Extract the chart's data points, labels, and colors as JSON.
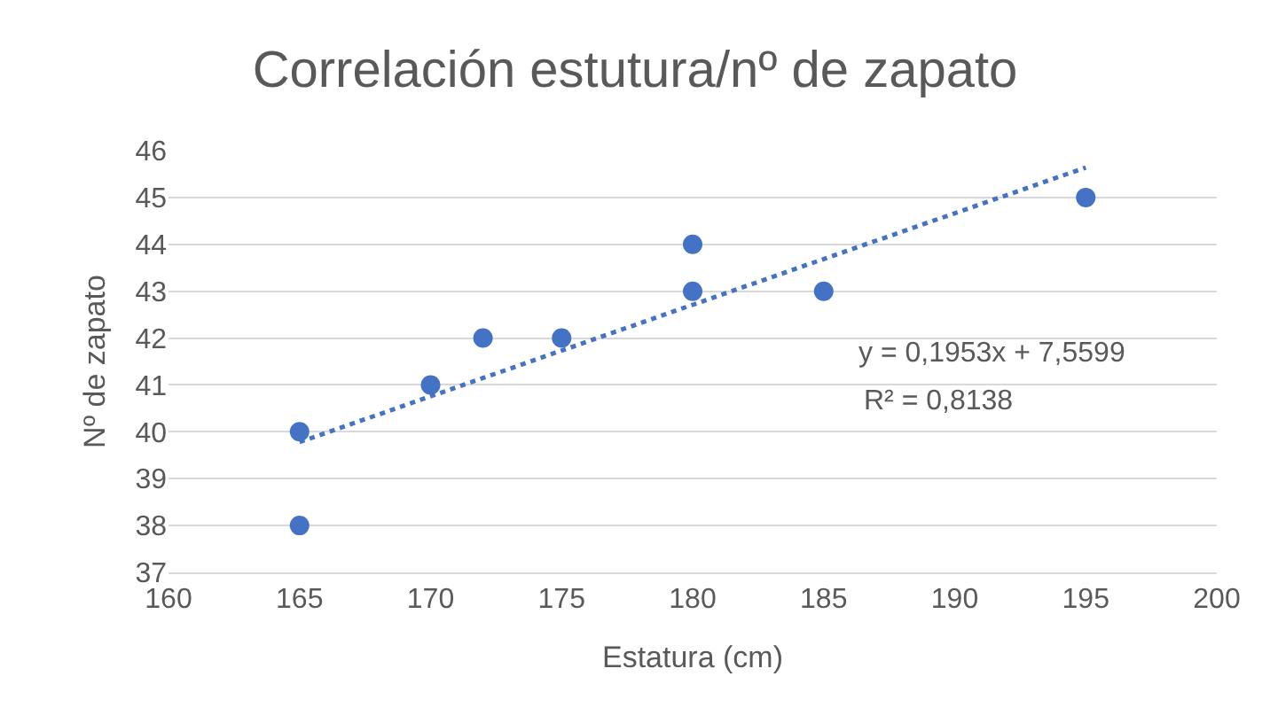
{
  "chart_data": {
    "type": "scatter",
    "title": "Correlación estutura/nº de zapato",
    "xlabel": "Estatura (cm)",
    "ylabel": "Nº de zapato",
    "xlim": [
      160,
      200
    ],
    "xticks": [
      160,
      165,
      170,
      175,
      180,
      185,
      190,
      195,
      200
    ],
    "ylim": [
      37,
      46
    ],
    "yticks": [
      37,
      38,
      39,
      40,
      41,
      42,
      43,
      44,
      45,
      46
    ],
    "grid": "y",
    "series": [
      {
        "marker": "circle",
        "color": "#4472c4",
        "x": [
          165,
          165,
          170,
          172,
          175,
          180,
          180,
          185,
          195
        ],
        "values": [
          40,
          38,
          41,
          42,
          42,
          44,
          43,
          43,
          45
        ]
      },
      {
        "type": "line",
        "color": "#4472c4",
        "line_style": "dotted",
        "x": [
          165,
          195
        ],
        "values": [
          39.78,
          45.64
        ]
      }
    ],
    "annotations": [
      "y = 0,1953x + 7,5599",
      "R² = 0,8138"
    ]
  }
}
